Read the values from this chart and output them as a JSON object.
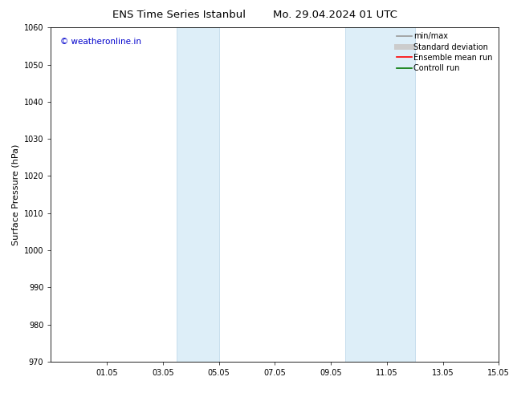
{
  "title_left": "ENS Time Series Istanbul",
  "title_right": "Mo. 29.04.2024 01 UTC",
  "ylabel": "Surface Pressure (hPa)",
  "ylim": [
    970,
    1060
  ],
  "yticks": [
    970,
    980,
    990,
    1000,
    1010,
    1020,
    1030,
    1040,
    1050,
    1060
  ],
  "xlim_start": 0.0,
  "xlim_end": 16.0,
  "xtick_positions": [
    2,
    4,
    6,
    8,
    10,
    12,
    14,
    16
  ],
  "xtick_labels": [
    "01.05",
    "03.05",
    "05.05",
    "07.05",
    "09.05",
    "11.05",
    "13.05",
    "15.05"
  ],
  "shaded_bands": [
    {
      "x_start": 4.5,
      "x_end": 6.0
    },
    {
      "x_start": 10.5,
      "x_end": 13.0
    }
  ],
  "band_color": "#ddeef8",
  "band_edge_color": "#b8d4e8",
  "watermark_text": "© weatheronline.in",
  "watermark_color": "#0000cc",
  "legend_entries": [
    {
      "label": "min/max",
      "color": "#999999",
      "lw": 1.2
    },
    {
      "label": "Standard deviation",
      "color": "#cccccc",
      "lw": 5
    },
    {
      "label": "Ensemble mean run",
      "color": "#ff0000",
      "lw": 1.2
    },
    {
      "label": "Controll run",
      "color": "#007700",
      "lw": 1.2
    }
  ],
  "bg_color": "#ffffff",
  "title_fontsize": 9.5,
  "ylabel_fontsize": 8,
  "tick_fontsize": 7,
  "watermark_fontsize": 7.5,
  "legend_fontsize": 7
}
